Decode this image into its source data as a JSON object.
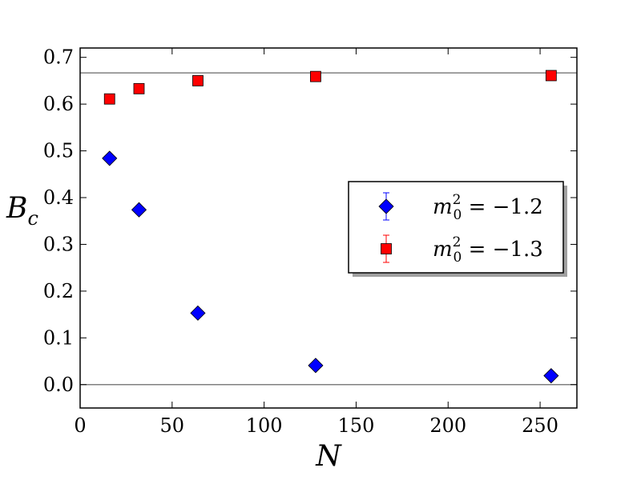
{
  "chart_data": {
    "type": "scatter",
    "xlabel": "N",
    "ylabel": "B",
    "ylabel_sub": "c",
    "xlim": [
      0,
      270
    ],
    "ylim": [
      -0.05,
      0.72
    ],
    "xticks": [
      0,
      50,
      100,
      150,
      200,
      250
    ],
    "yticks": [
      0.0,
      0.1,
      0.2,
      0.3,
      0.4,
      0.5,
      0.6,
      0.7
    ],
    "xtick_labels": [
      "0",
      "50",
      "100",
      "150",
      "200",
      "250"
    ],
    "ytick_labels": [
      "0.0",
      "0.1",
      "0.2",
      "0.3",
      "0.4",
      "0.5",
      "0.6",
      "0.7"
    ],
    "reference_lines_y": [
      0.0,
      0.6667
    ],
    "reference_line_color": "#808080",
    "grid": false,
    "legend_position": "right",
    "series": [
      {
        "name": "m",
        "legend_label": {
          "base": "m",
          "sup": "2",
          "sub": "0",
          "rest": " = −1.2"
        },
        "marker": "diamond",
        "color": "#0000ff",
        "x": [
          16,
          32,
          64,
          128,
          256
        ],
        "y": [
          0.484,
          0.374,
          0.153,
          0.041,
          0.019
        ]
      },
      {
        "name": "m",
        "legend_label": {
          "base": "m",
          "sup": "2",
          "sub": "0",
          "rest": " = −1.3"
        },
        "marker": "square",
        "color": "#ff0000",
        "x": [
          16,
          32,
          64,
          128,
          256
        ],
        "y": [
          0.611,
          0.633,
          0.65,
          0.659,
          0.661
        ]
      }
    ]
  }
}
